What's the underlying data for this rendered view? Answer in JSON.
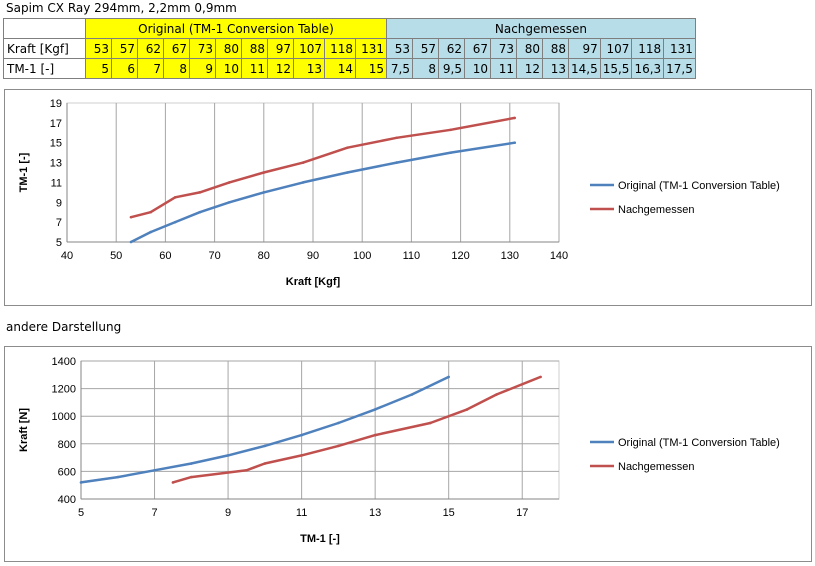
{
  "sheet": {
    "title": "Sapim CX Ray 294mm, 2,2mm 0,9mm",
    "group_original": "Original (TM-1 Conversion Table)",
    "group_measured": "Nachgemessen",
    "row_kraft_label": "Kraft [Kgf]",
    "row_tm_label": "TM-1 [-]",
    "kraft_values": [
      "53",
      "57",
      "62",
      "67",
      "73",
      "80",
      "88",
      "97",
      "107",
      "118",
      "131"
    ],
    "tm_original": [
      "5",
      "6",
      "7",
      "8",
      "9",
      "10",
      "11",
      "12",
      "13",
      "14",
      "15"
    ],
    "tm_measured": [
      "7,5",
      "8",
      "9,5",
      "10",
      "11",
      "12",
      "13",
      "14,5",
      "15,5",
      "16,3",
      "17,5"
    ],
    "colors": {
      "original_fill": "#ffff00",
      "measured_fill": "#b7dde8"
    }
  },
  "section_label": "andere Darstellung",
  "chart_data": [
    {
      "type": "line",
      "xlabel": "Kraft [Kgf]",
      "ylabel": "TM-1 [-]",
      "xlim": [
        40,
        140
      ],
      "ylim": [
        5,
        19
      ],
      "xticks": [
        40,
        50,
        60,
        70,
        80,
        90,
        100,
        110,
        120,
        130,
        140
      ],
      "yticks": [
        5,
        7,
        9,
        11,
        13,
        15,
        17,
        19
      ],
      "grid": "vertical",
      "legend": "right",
      "series": [
        {
          "name": "Original (TM-1 Conversion Table)",
          "color": "#4f81bd",
          "x": [
            53,
            57,
            62,
            67,
            73,
            80,
            88,
            97,
            107,
            118,
            131
          ],
          "y": [
            5,
            6,
            7,
            8,
            9,
            10,
            11,
            12,
            13,
            14,
            15
          ]
        },
        {
          "name": "Nachgemessen",
          "color": "#c0504d",
          "x": [
            53,
            57,
            62,
            67,
            73,
            80,
            88,
            97,
            107,
            118,
            131
          ],
          "y": [
            7.5,
            8,
            9.5,
            10,
            11,
            12,
            13,
            14.5,
            15.5,
            16.3,
            17.5
          ]
        }
      ]
    },
    {
      "type": "line",
      "xlabel": "TM-1 [-]",
      "ylabel": "Kraft [N]",
      "xlim": [
        5,
        18
      ],
      "ylim": [
        400,
        1400
      ],
      "xticks": [
        5,
        7,
        9,
        11,
        13,
        15,
        17
      ],
      "yticks": [
        400,
        600,
        800,
        1000,
        1200,
        1400
      ],
      "grid": "both",
      "legend": "right",
      "series": [
        {
          "name": "Original (TM-1 Conversion Table)",
          "color": "#4f81bd",
          "x": [
            5,
            6,
            7,
            8,
            9,
            10,
            11,
            12,
            13,
            14,
            15
          ],
          "y": [
            520,
            559,
            608,
            657,
            716,
            785,
            863,
            951,
            1049,
            1157,
            1285
          ]
        },
        {
          "name": "Nachgemessen",
          "color": "#c0504d",
          "x": [
            7.5,
            8,
            9.5,
            10,
            11,
            12,
            13,
            14.5,
            15.5,
            16.3,
            17.5
          ],
          "y": [
            520,
            559,
            608,
            657,
            716,
            785,
            863,
            951,
            1049,
            1157,
            1285
          ]
        }
      ]
    }
  ]
}
